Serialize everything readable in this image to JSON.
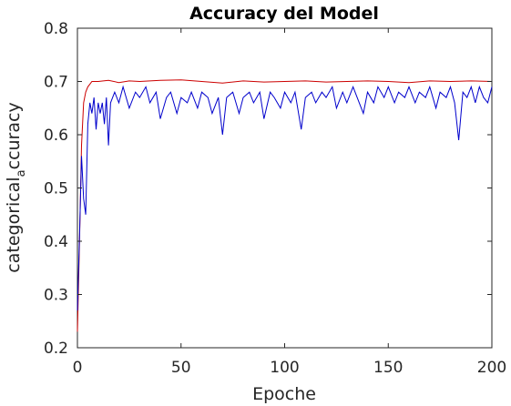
{
  "chart_data": {
    "type": "line",
    "title": "Accuracy del Model",
    "xlabel": "Epoche",
    "ylabel_main": "categorical",
    "ylabel_sub": "a",
    "ylabel_tail": "ccuracy",
    "xlim": [
      0,
      200
    ],
    "ylim": [
      0.2,
      0.8
    ],
    "xticks": [
      0,
      50,
      100,
      150,
      200
    ],
    "yticks": [
      0.2,
      0.3,
      0.4,
      0.5,
      0.6,
      0.7,
      0.8
    ],
    "xtick_labels": [
      "0",
      "50",
      "100",
      "150",
      "200"
    ],
    "ytick_labels": [
      "0.2",
      "0.3",
      "0.4",
      "0.5",
      "0.6",
      "0.7",
      "0.8"
    ],
    "grid": false,
    "legend": "none",
    "series": [
      {
        "color": "#cc0000",
        "points": [
          [
            0,
            0.23
          ],
          [
            1,
            0.4
          ],
          [
            2,
            0.58
          ],
          [
            3,
            0.66
          ],
          [
            4,
            0.68
          ],
          [
            5,
            0.69
          ],
          [
            6,
            0.695
          ],
          [
            7,
            0.7
          ],
          [
            10,
            0.7
          ],
          [
            15,
            0.702
          ],
          [
            20,
            0.698
          ],
          [
            25,
            0.701
          ],
          [
            30,
            0.7
          ],
          [
            40,
            0.702
          ],
          [
            50,
            0.703
          ],
          [
            60,
            0.7
          ],
          [
            70,
            0.697
          ],
          [
            80,
            0.701
          ],
          [
            90,
            0.699
          ],
          [
            100,
            0.7
          ],
          [
            110,
            0.701
          ],
          [
            120,
            0.699
          ],
          [
            130,
            0.7
          ],
          [
            140,
            0.701
          ],
          [
            150,
            0.7
          ],
          [
            160,
            0.698
          ],
          [
            170,
            0.701
          ],
          [
            180,
            0.7
          ],
          [
            190,
            0.701
          ],
          [
            200,
            0.7
          ]
        ]
      },
      {
        "color": "#0000cc",
        "points": [
          [
            0,
            0.27
          ],
          [
            1,
            0.41
          ],
          [
            2,
            0.56
          ],
          [
            3,
            0.48
          ],
          [
            4,
            0.45
          ],
          [
            5,
            0.62
          ],
          [
            6,
            0.66
          ],
          [
            7,
            0.64
          ],
          [
            8,
            0.67
          ],
          [
            9,
            0.61
          ],
          [
            10,
            0.66
          ],
          [
            11,
            0.64
          ],
          [
            12,
            0.66
          ],
          [
            13,
            0.62
          ],
          [
            14,
            0.67
          ],
          [
            15,
            0.58
          ],
          [
            16,
            0.66
          ],
          [
            18,
            0.68
          ],
          [
            20,
            0.66
          ],
          [
            22,
            0.69
          ],
          [
            25,
            0.65
          ],
          [
            28,
            0.68
          ],
          [
            30,
            0.67
          ],
          [
            33,
            0.69
          ],
          [
            35,
            0.66
          ],
          [
            38,
            0.68
          ],
          [
            40,
            0.63
          ],
          [
            43,
            0.67
          ],
          [
            45,
            0.68
          ],
          [
            48,
            0.64
          ],
          [
            50,
            0.67
          ],
          [
            53,
            0.66
          ],
          [
            55,
            0.68
          ],
          [
            58,
            0.65
          ],
          [
            60,
            0.68
          ],
          [
            63,
            0.67
          ],
          [
            65,
            0.64
          ],
          [
            68,
            0.67
          ],
          [
            70,
            0.6
          ],
          [
            72,
            0.67
          ],
          [
            75,
            0.68
          ],
          [
            78,
            0.64
          ],
          [
            80,
            0.67
          ],
          [
            83,
            0.68
          ],
          [
            85,
            0.66
          ],
          [
            88,
            0.68
          ],
          [
            90,
            0.63
          ],
          [
            93,
            0.68
          ],
          [
            95,
            0.67
          ],
          [
            98,
            0.65
          ],
          [
            100,
            0.68
          ],
          [
            103,
            0.66
          ],
          [
            105,
            0.68
          ],
          [
            108,
            0.61
          ],
          [
            110,
            0.67
          ],
          [
            113,
            0.68
          ],
          [
            115,
            0.66
          ],
          [
            118,
            0.68
          ],
          [
            120,
            0.67
          ],
          [
            123,
            0.69
          ],
          [
            125,
            0.65
          ],
          [
            128,
            0.68
          ],
          [
            130,
            0.66
          ],
          [
            133,
            0.69
          ],
          [
            135,
            0.67
          ],
          [
            138,
            0.64
          ],
          [
            140,
            0.68
          ],
          [
            143,
            0.66
          ],
          [
            145,
            0.69
          ],
          [
            148,
            0.67
          ],
          [
            150,
            0.69
          ],
          [
            153,
            0.66
          ],
          [
            155,
            0.68
          ],
          [
            158,
            0.67
          ],
          [
            160,
            0.69
          ],
          [
            163,
            0.66
          ],
          [
            165,
            0.68
          ],
          [
            168,
            0.67
          ],
          [
            170,
            0.69
          ],
          [
            173,
            0.65
          ],
          [
            175,
            0.68
          ],
          [
            178,
            0.67
          ],
          [
            180,
            0.69
          ],
          [
            182,
            0.66
          ],
          [
            184,
            0.59
          ],
          [
            186,
            0.68
          ],
          [
            188,
            0.67
          ],
          [
            190,
            0.69
          ],
          [
            192,
            0.66
          ],
          [
            194,
            0.69
          ],
          [
            196,
            0.67
          ],
          [
            198,
            0.66
          ],
          [
            200,
            0.69
          ]
        ]
      }
    ]
  }
}
